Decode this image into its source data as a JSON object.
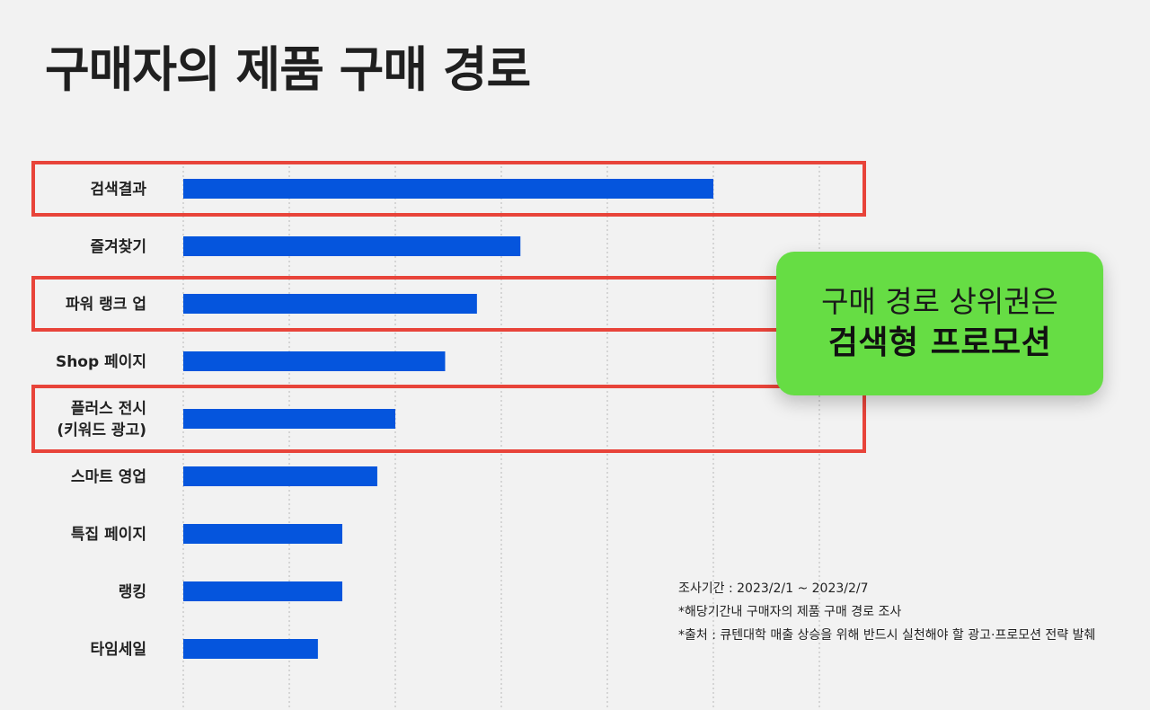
{
  "title": "구매자의 제품 구매 경로",
  "callout": {
    "line1": "구매 경로 상위권은",
    "line2": "검색형 프로모션"
  },
  "notes": [
    "조사기간 : 2023/2/1 ~ 2023/2/7",
    "*해당기간내 구매자의 제품 구매 경로 조사",
    "*출처 : 큐텐대학 매출 상승을 위해 반드시 실천해야 할 광고·프로모션 전략 발췌"
  ],
  "chart_data": {
    "type": "bar",
    "orientation": "horizontal",
    "categories": [
      [
        "검색결과"
      ],
      [
        "즐겨찾기"
      ],
      [
        "파워 랭크 업"
      ],
      [
        "Shop 페이지"
      ],
      [
        "플러스 전시",
        "(키워드 광고)"
      ],
      [
        "스마트 영업"
      ],
      [
        "특집 페이지"
      ],
      [
        "랭킹"
      ],
      [
        "타임세일"
      ]
    ],
    "values": [
      50,
      31.8,
      27.7,
      24.7,
      20,
      18.3,
      15,
      15,
      12.7
    ],
    "xlim": [
      0,
      60
    ],
    "grid": "vertical-dotted",
    "bar_color": "#0555dd",
    "highlight_color": "#e8443a",
    "highlighted_indices": [
      0,
      2,
      4
    ]
  }
}
